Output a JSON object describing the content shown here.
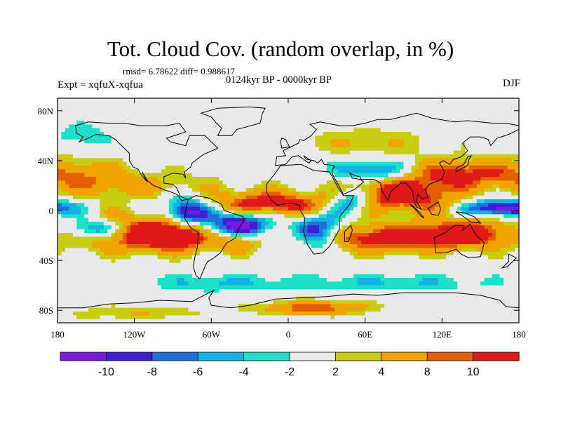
{
  "header": {
    "title": "Tot. Cloud Cov. (random overlap, in %)",
    "stats": "rmsd= 6.78622  diff= 0.988617",
    "period": "0124kyr BP - 0000kyr BP",
    "experiment": "Expt = xqfuX-xqfua",
    "season": "DJF"
  },
  "axes": {
    "x_ticks": [
      "180",
      "120W",
      "60W",
      "0",
      "60E",
      "120E",
      "180"
    ],
    "x_values": [
      -180,
      -120,
      -60,
      0,
      60,
      120,
      180
    ],
    "y_ticks": [
      "80N",
      "40N",
      "0",
      "40S",
      "80S"
    ],
    "y_values": [
      80,
      40,
      0,
      -40,
      -80
    ],
    "lon_range": [
      -180,
      180
    ],
    "lat_range": [
      -90,
      90
    ]
  },
  "colorbar": {
    "labels": [
      "-10",
      "-8",
      "-6",
      "-4",
      "-2",
      "2",
      "4",
      "8",
      "10"
    ],
    "colors": [
      "#7c19e0",
      "#3e1fd6",
      "#1f6fdb",
      "#12b2e6",
      "#1ee0c8",
      "#e9e9e9",
      "#c8cc12",
      "#f0a400",
      "#e45f00",
      "#e01818"
    ]
  },
  "chart_data": {
    "type": "heatmap",
    "variable": "Total cloud cover difference (%)",
    "x": [
      -180,
      180
    ],
    "y": [
      -90,
      90
    ],
    "levels": [
      -10,
      -8,
      -6,
      -4,
      -2,
      2,
      4,
      8,
      10
    ],
    "colors": [
      "#7c19e0",
      "#3e1fd6",
      "#1f6fdb",
      "#12b2e6",
      "#1ee0c8",
      "#e9e9e9",
      "#c8cc12",
      "#f0a400",
      "#e45f00",
      "#e01818"
    ],
    "features": [
      {
        "lon": -118,
        "lat": -18,
        "value": 14,
        "slon": 35,
        "slat": 10
      },
      {
        "lon": -85,
        "lat": -20,
        "value": 12,
        "slon": 18,
        "slat": 8
      },
      {
        "lon": -15,
        "lat": 5,
        "value": 14,
        "slon": 30,
        "slat": 7
      },
      {
        "lon": -40,
        "lat": -25,
        "value": 10,
        "slon": 12,
        "slat": 6
      },
      {
        "lon": 85,
        "lat": 12,
        "value": 14,
        "slon": 32,
        "slat": 9
      },
      {
        "lon": 70,
        "lat": -22,
        "value": 13,
        "slon": 45,
        "slat": 8
      },
      {
        "lon": 140,
        "lat": -18,
        "value": 12,
        "slon": 25,
        "slat": 8
      },
      {
        "lon": 130,
        "lat": 30,
        "value": 11,
        "slon": 35,
        "slat": 8
      },
      {
        "lon": -120,
        "lat": 20,
        "value": 5,
        "slon": 50,
        "slat": 8
      },
      {
        "lon": -160,
        "lat": 30,
        "value": 5,
        "slon": 25,
        "slat": 10
      },
      {
        "lon": -150,
        "lat": -15,
        "value": -14,
        "slon": 18,
        "slat": 6
      },
      {
        "lon": -80,
        "lat": -2,
        "value": -14,
        "slon": 12,
        "slat": 9
      },
      {
        "lon": -40,
        "lat": -12,
        "value": -14,
        "slon": 20,
        "slat": 9
      },
      {
        "lon": 25,
        "lat": -18,
        "value": -14,
        "slon": 14,
        "slat": 10
      },
      {
        "lon": 50,
        "lat": 8,
        "value": -12,
        "slon": 12,
        "slat": 7
      },
      {
        "lon": 70,
        "lat": 32,
        "value": -10,
        "slon": 22,
        "slat": 6
      },
      {
        "lon": 165,
        "lat": 2,
        "value": -14,
        "slon": 18,
        "slat": 5
      },
      {
        "lon": -160,
        "lat": 60,
        "value": -4,
        "slon": 14,
        "slat": 7
      },
      {
        "lon": 80,
        "lat": -58,
        "value": -4,
        "slon": 60,
        "slat": 5
      },
      {
        "lon": -60,
        "lat": -58,
        "value": -4,
        "slon": 40,
        "slat": 5
      },
      {
        "lon": 20,
        "lat": -78,
        "value": 10,
        "slon": 30,
        "slat": 4
      },
      {
        "lon": -120,
        "lat": -82,
        "value": 4,
        "slon": 40,
        "slat": 4
      },
      {
        "lon": 60,
        "lat": 55,
        "value": 4,
        "slon": 40,
        "slat": 8
      }
    ]
  }
}
